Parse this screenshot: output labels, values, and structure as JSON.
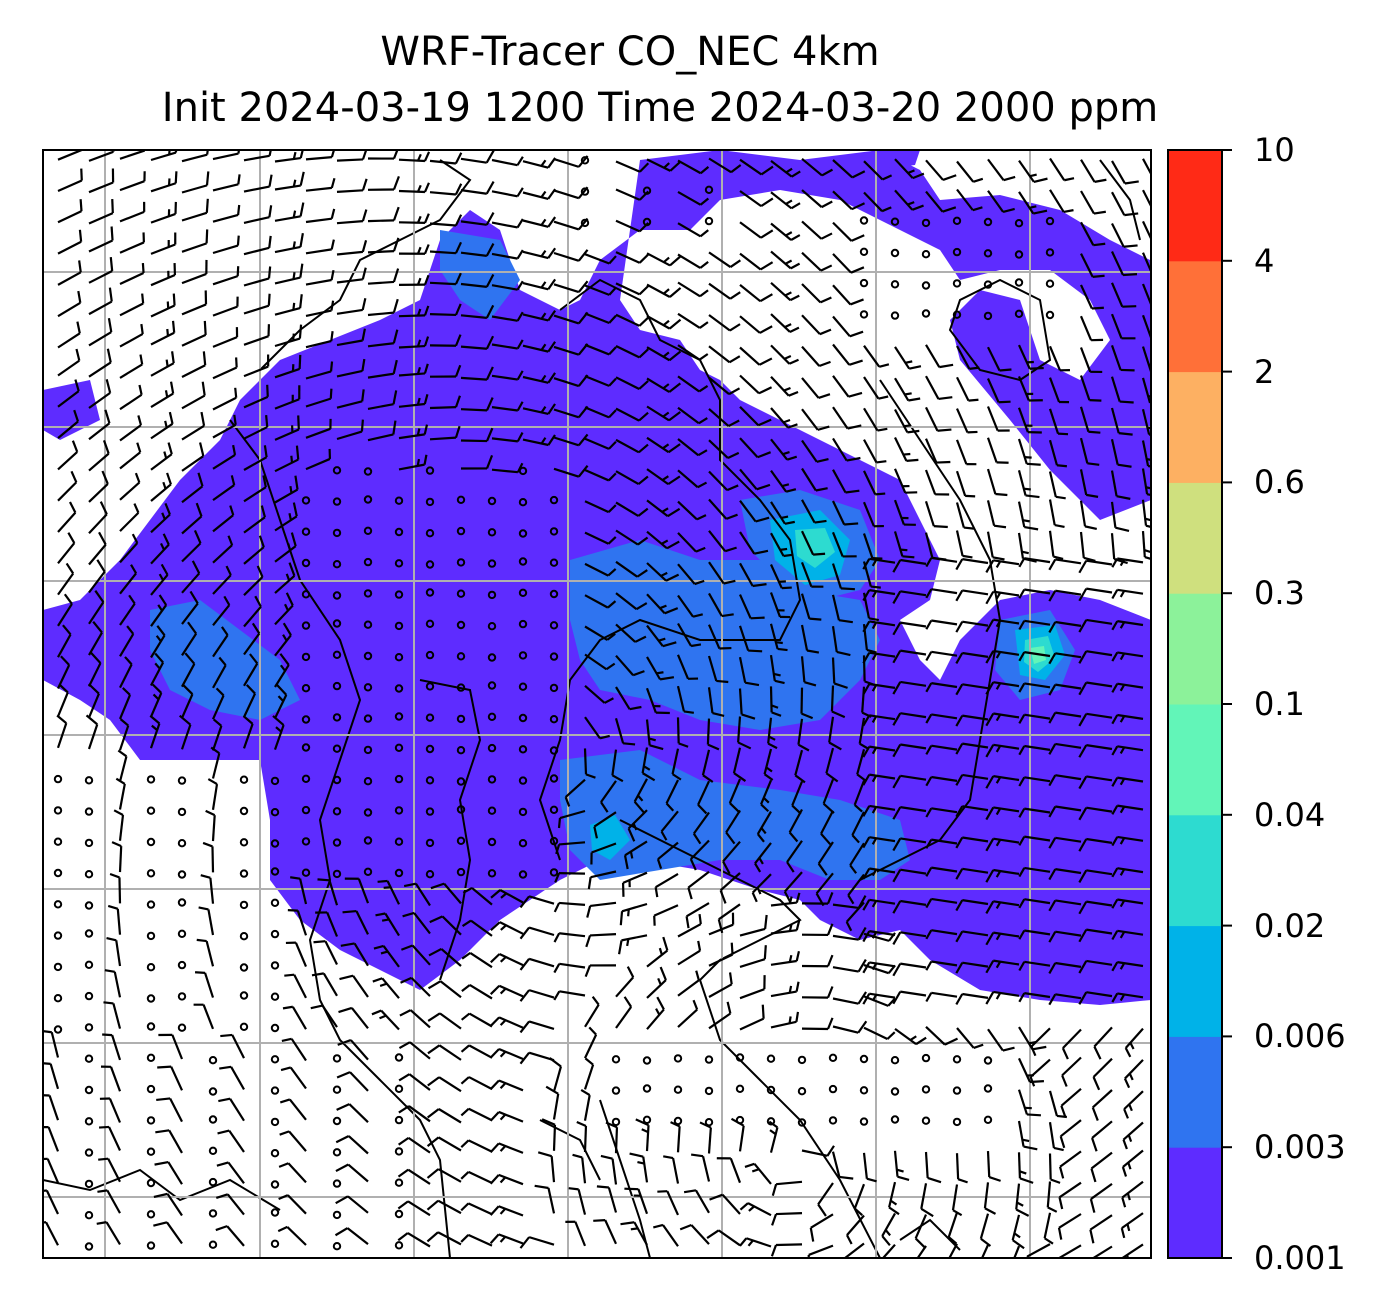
{
  "title": {
    "line1": "WRF-Tracer CO_NEC 4km",
    "line2": "Init 2024-03-19 1200 Time 2024-03-20 2000 ppm"
  },
  "colorbar": {
    "unit": "ppm",
    "levels": [
      "0.001",
      "0.003",
      "0.006",
      "0.02",
      "0.04",
      "0.1",
      "0.3",
      "0.6",
      "2",
      "4",
      "10"
    ],
    "colors": [
      "#5e2cff",
      "#2f74f0",
      "#00b2e8",
      "#2ddbd0",
      "#62f5b8",
      "#8cf29a",
      "#cfe07e",
      "#fdb062",
      "#ff7038",
      "#ff2a16"
    ]
  },
  "map": {
    "gridlines": true,
    "field": "CO_NEC tracer concentration",
    "overlay": "wind barbs",
    "plume_levels_present": [
      "0.001",
      "0.003",
      "0.006",
      "0.02",
      "0.04"
    ]
  }
}
